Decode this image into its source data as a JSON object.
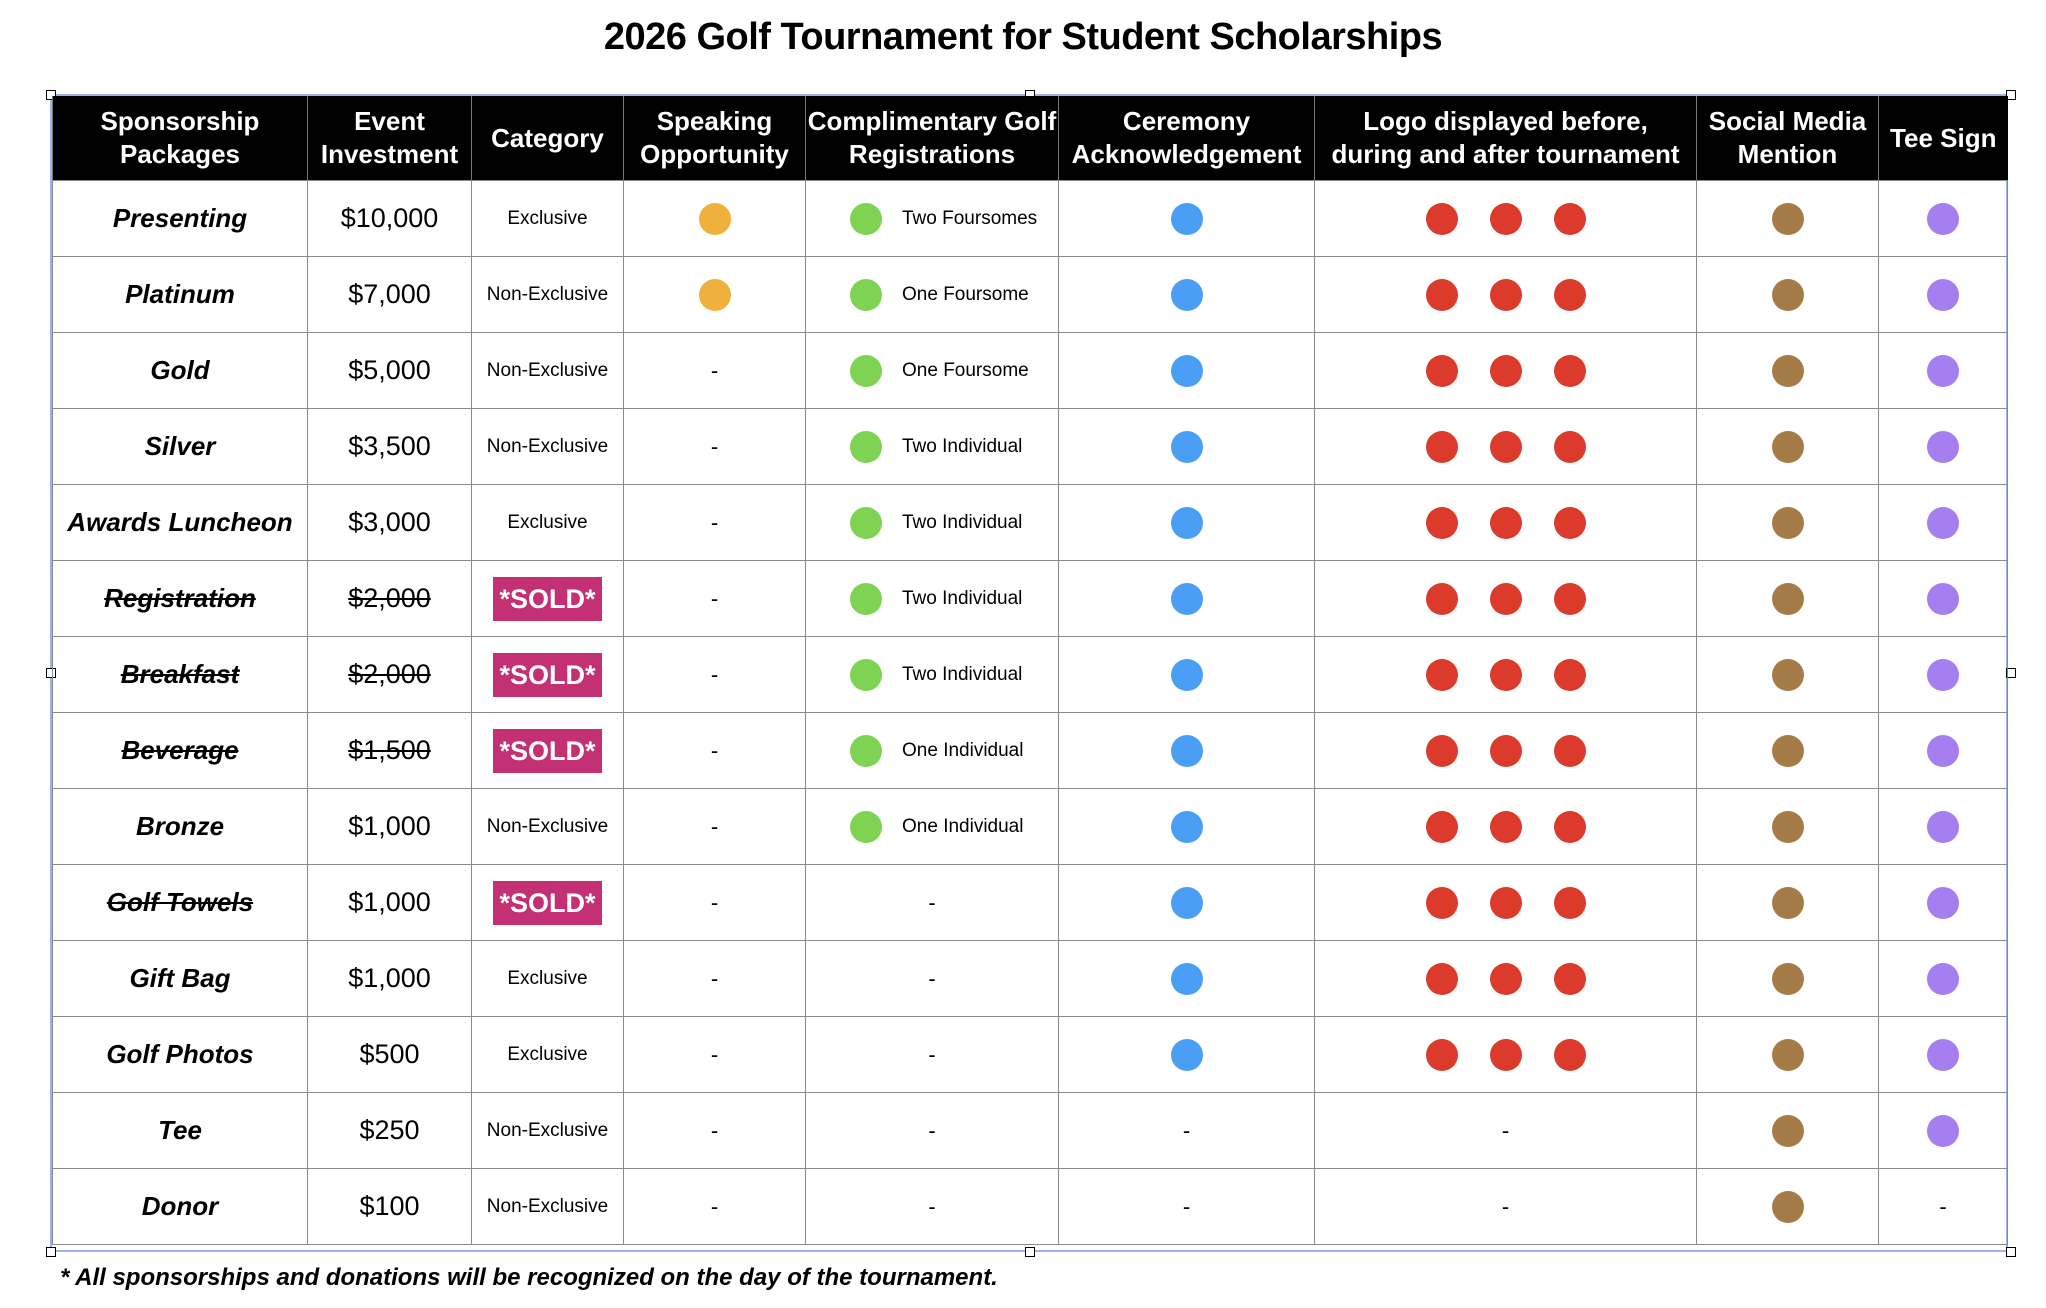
{
  "title": "2026 Golf Tournament for Student Scholarships",
  "colors": {
    "speaking": "#f0b13c",
    "golf": "#7ed452",
    "ceremony": "#4a9ff5",
    "logo": "#dc3a2a",
    "social": "#a57b48",
    "tee": "#a57ef0",
    "sold": "#c33074"
  },
  "headers": [
    "Sponsorship Packages",
    "Event Investment",
    "Category",
    "Speaking Opportunity",
    "Complimentary Golf Registrations",
    "Ceremony Acknowledgement",
    "Logo displayed before, during and after tournament",
    "Social Media Mention",
    "Tee Sign"
  ],
  "rows": [
    {
      "package": "Presenting",
      "investment": "$10,000",
      "category": "Exclusive",
      "speaking": true,
      "golf": "Two Foursomes",
      "ceremony": true,
      "logo": 3,
      "social": true,
      "tee": true
    },
    {
      "package": "Platinum",
      "investment": "$7,000",
      "category": "Non-Exclusive",
      "speaking": true,
      "golf": "One Foursome",
      "ceremony": true,
      "logo": 3,
      "social": true,
      "tee": true
    },
    {
      "package": "Gold",
      "investment": "$5,000",
      "category": "Non-Exclusive",
      "speaking": false,
      "golf": "One Foursome",
      "ceremony": true,
      "logo": 3,
      "social": true,
      "tee": true
    },
    {
      "package": "Silver",
      "investment": "$3,500",
      "category": "Non-Exclusive",
      "speaking": false,
      "golf": "Two Individual",
      "ceremony": true,
      "logo": 3,
      "social": true,
      "tee": true
    },
    {
      "package": "Awards Luncheon",
      "investment": "$3,000",
      "category": "Exclusive",
      "speaking": false,
      "golf": "Two Individual",
      "ceremony": true,
      "logo": 3,
      "social": true,
      "tee": true
    },
    {
      "package": "Registration",
      "investment": "$2,000",
      "category": "*SOLD*",
      "sold": true,
      "strike_investment": true,
      "speaking": false,
      "golf": "Two Individual",
      "ceremony": true,
      "logo": 3,
      "social": true,
      "tee": true
    },
    {
      "package": "Breakfast",
      "investment": "$2,000",
      "category": "*SOLD*",
      "sold": true,
      "strike_investment": true,
      "speaking": false,
      "golf": "Two Individual",
      "ceremony": true,
      "logo": 3,
      "social": true,
      "tee": true
    },
    {
      "package": "Beverage",
      "investment": "$1,500",
      "category": "*SOLD*",
      "sold": true,
      "strike_investment": true,
      "speaking": false,
      "golf": "One Individual",
      "ceremony": true,
      "logo": 3,
      "social": true,
      "tee": true
    },
    {
      "package": "Bronze",
      "investment": "$1,000",
      "category": "Non-Exclusive",
      "speaking": false,
      "golf": "One Individual",
      "ceremony": true,
      "logo": 3,
      "social": true,
      "tee": true
    },
    {
      "package": "Golf Towels",
      "investment": "$1,000",
      "category": "*SOLD*",
      "sold": true,
      "strike_investment": false,
      "speaking": false,
      "golf": null,
      "ceremony": true,
      "logo": 3,
      "social": true,
      "tee": true
    },
    {
      "package": "Gift Bag",
      "investment": "$1,000",
      "category": "Exclusive",
      "speaking": false,
      "golf": null,
      "ceremony": true,
      "logo": 3,
      "social": true,
      "tee": true
    },
    {
      "package": "Golf Photos",
      "investment": "$500",
      "category": "Exclusive",
      "speaking": false,
      "golf": null,
      "ceremony": true,
      "logo": 3,
      "social": true,
      "tee": true
    },
    {
      "package": "Tee",
      "investment": "$250",
      "category": "Non-Exclusive",
      "speaking": false,
      "golf": null,
      "ceremony": false,
      "logo": 0,
      "social": true,
      "tee": true
    },
    {
      "package": "Donor",
      "investment": "$100",
      "category": "Non-Exclusive",
      "speaking": false,
      "golf": null,
      "ceremony": false,
      "logo": 0,
      "social": true,
      "tee": false
    }
  ],
  "dash": "-",
  "footnote": "* All sponsorships and donations will be recognized on the day of the tournament."
}
